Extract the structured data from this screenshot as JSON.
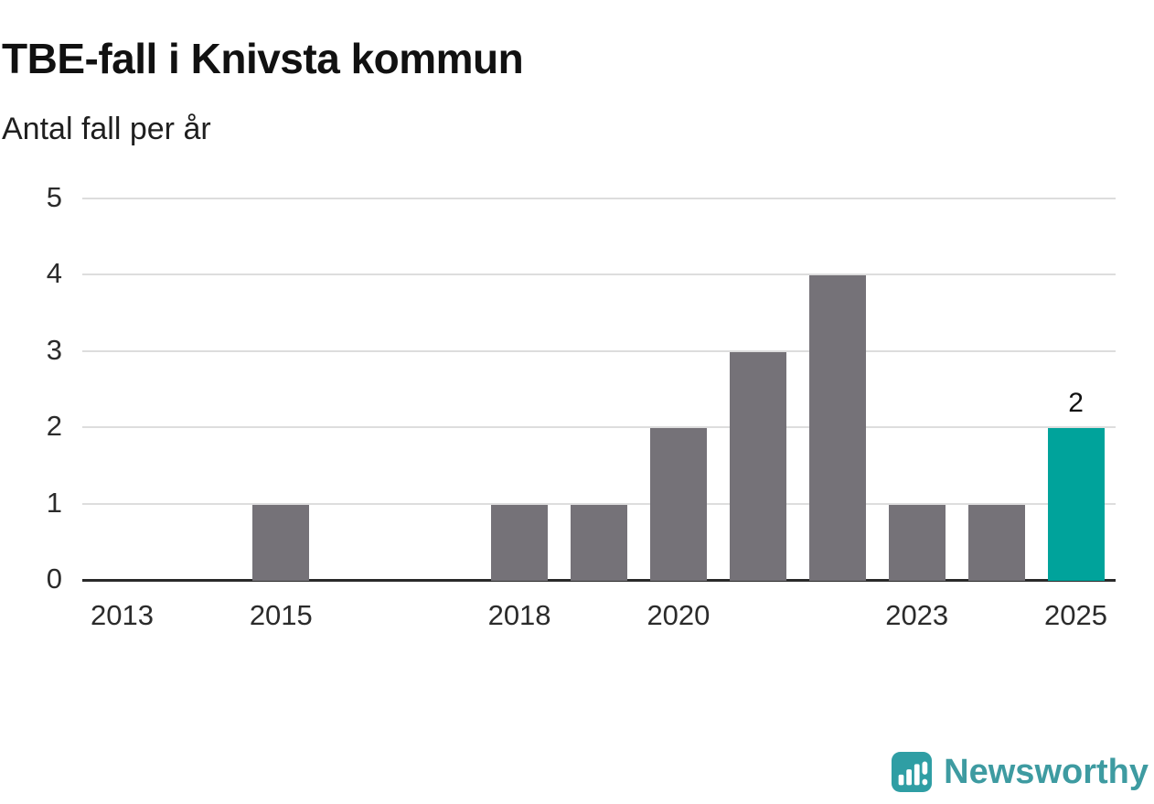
{
  "header": {
    "title": "TBE-fall i Knivsta kommun",
    "subtitle": "Antal fall per år"
  },
  "chart_data": {
    "type": "bar",
    "title": "TBE-fall i Knivsta kommun",
    "subtitle": "Antal fall per år",
    "categories": [
      "2013",
      "2014",
      "2015",
      "2016",
      "2017",
      "2018",
      "2019",
      "2020",
      "2021",
      "2022",
      "2023",
      "2024",
      "2025"
    ],
    "values": [
      0,
      0,
      1,
      0,
      0,
      1,
      1,
      2,
      3,
      4,
      1,
      1,
      2
    ],
    "ylim": [
      0,
      5
    ],
    "y_ticks": [
      0,
      1,
      2,
      3,
      4,
      5
    ],
    "x_tick_labels": [
      "2013",
      "2015",
      "2018",
      "2020",
      "2023",
      "2025"
    ],
    "grid": true,
    "legend": "none",
    "bar_color": "#757278",
    "highlight_color": "#00a39b",
    "highlight_index": 12,
    "value_labels": [
      {
        "index": 12,
        "text": "2"
      }
    ]
  },
  "branding": {
    "name": "Newsworthy",
    "color": "#3e9ba1"
  }
}
